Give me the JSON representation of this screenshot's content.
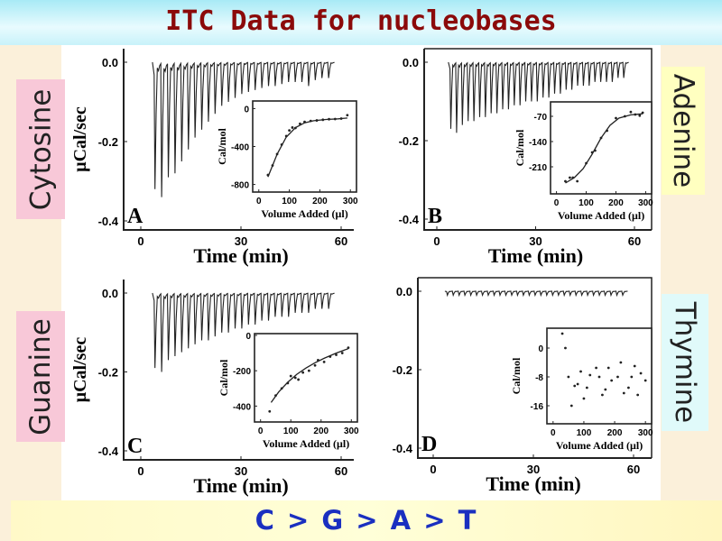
{
  "title": "ITC Data for nucleobases",
  "footer": "C > G > A > T",
  "labels": {
    "cytosine": "Cytosine",
    "guanine": "Guanine",
    "adenine": "Adenine",
    "thymine": "Thymine"
  },
  "colors": {
    "title": "#8b0a0a",
    "footer": "#1a2fc0",
    "cytosine_bg": "#f8c8d8",
    "guanine_bg": "#f8c8d8",
    "adenine_bg": "#ffffc0",
    "thymine_bg": "#e0fafa"
  },
  "chart_data": [
    {
      "panel": "A",
      "type": "line",
      "xlabel": "Time (min)",
      "ylabel": "μCal/sec",
      "xticks": [
        "0",
        "30",
        "60"
      ],
      "yticks": [
        "0.0",
        "-0.2",
        "-0.4"
      ],
      "xlim": [
        0,
        60
      ],
      "ylim": [
        -0.4,
        0.0
      ],
      "injection_start": 4,
      "injection_interval": 2,
      "peak_heights": [
        -0.32,
        -0.34,
        -0.29,
        -0.28,
        -0.25,
        -0.22,
        -0.19,
        -0.17,
        -0.15,
        -0.13,
        -0.11,
        -0.1,
        -0.09,
        -0.08,
        -0.075,
        -0.07,
        -0.065,
        -0.06,
        -0.06,
        -0.055,
        -0.05,
        -0.05,
        -0.05,
        -0.06,
        -0.045,
        -0.04,
        -0.04
      ],
      "inset": {
        "type": "scatter",
        "xlabel": "Volume Added (μl)",
        "ylabel": "Cal/mol",
        "xticks": [
          "0",
          "100",
          "200",
          "300"
        ],
        "yticks": [
          "0",
          "-400",
          "-800"
        ],
        "xlim": [
          -20,
          320
        ],
        "ylim": [
          -880,
          80
        ],
        "points": [
          [
            30,
            -700
          ],
          [
            45,
            -600
          ],
          [
            60,
            -480
          ],
          [
            75,
            -380
          ],
          [
            90,
            -290
          ],
          [
            100,
            -230
          ],
          [
            110,
            -200
          ],
          [
            120,
            -205
          ],
          [
            135,
            -160
          ],
          [
            150,
            -140
          ],
          [
            170,
            -130
          ],
          [
            190,
            -125
          ],
          [
            210,
            -118
          ],
          [
            230,
            -112
          ],
          [
            250,
            -110
          ],
          [
            270,
            -105
          ],
          [
            290,
            -70
          ]
        ],
        "fit": [
          [
            30,
            -720
          ],
          [
            60,
            -480
          ],
          [
            90,
            -300
          ],
          [
            120,
            -200
          ],
          [
            150,
            -150
          ],
          [
            180,
            -128
          ],
          [
            220,
            -115
          ],
          [
            260,
            -108
          ],
          [
            290,
            -100
          ]
        ]
      }
    },
    {
      "panel": "B",
      "type": "line",
      "xlabel": "Time (min)",
      "ylabel": "",
      "xticks": [
        "0",
        "30",
        "60"
      ],
      "yticks": [
        "0.0",
        "-0.2",
        "-0.4"
      ],
      "xlim": [
        0,
        60
      ],
      "ylim": [
        -0.4,
        0.0
      ],
      "injection_start": 4,
      "injection_interval": 1.75,
      "peak_heights": [
        -0.17,
        -0.18,
        -0.16,
        -0.15,
        -0.15,
        -0.14,
        -0.14,
        -0.13,
        -0.13,
        -0.12,
        -0.12,
        -0.11,
        -0.11,
        -0.1,
        -0.1,
        -0.1,
        -0.09,
        -0.09,
        -0.08,
        -0.08,
        -0.07,
        -0.07,
        -0.06,
        -0.06,
        -0.06,
        -0.05,
        -0.05,
        -0.05,
        -0.05,
        -0.04,
        -0.04
      ],
      "inset": {
        "type": "scatter",
        "xlabel": "Volume Added (μl)",
        "ylabel": "Cal/mol",
        "xticks": [
          "0",
          "100",
          "200",
          "300"
        ],
        "yticks": [
          "-70",
          "-140",
          "-210"
        ],
        "xlim": [
          -20,
          320
        ],
        "ylim": [
          -285,
          -30
        ],
        "points": [
          [
            30,
            -250
          ],
          [
            45,
            -240
          ],
          [
            55,
            -240
          ],
          [
            70,
            -250
          ],
          [
            100,
            -200
          ],
          [
            120,
            -170
          ],
          [
            130,
            -165
          ],
          [
            150,
            -130
          ],
          [
            170,
            -110
          ],
          [
            200,
            -75
          ],
          [
            230,
            -70
          ],
          [
            250,
            -58
          ],
          [
            265,
            -65
          ],
          [
            280,
            -68
          ],
          [
            290,
            -60
          ]
        ],
        "fit": [
          [
            30,
            -255
          ],
          [
            60,
            -240
          ],
          [
            90,
            -215
          ],
          [
            120,
            -175
          ],
          [
            150,
            -130
          ],
          [
            180,
            -95
          ],
          [
            210,
            -75
          ],
          [
            250,
            -66
          ],
          [
            290,
            -63
          ]
        ]
      }
    },
    {
      "panel": "C",
      "type": "line",
      "xlabel": "Time (min)",
      "ylabel": "μCal/sec",
      "xticks": [
        "0",
        "30",
        "60"
      ],
      "yticks": [
        "0.0",
        "-0.2",
        "-0.4"
      ],
      "xlim": [
        0,
        60
      ],
      "ylim": [
        -0.4,
        0.0
      ],
      "injection_start": 4,
      "injection_interval": 2,
      "peak_heights": [
        -0.19,
        -0.2,
        -0.17,
        -0.16,
        -0.15,
        -0.14,
        -0.13,
        -0.12,
        -0.12,
        -0.11,
        -0.1,
        -0.1,
        -0.09,
        -0.09,
        -0.08,
        -0.08,
        -0.07,
        -0.07,
        -0.06,
        -0.06,
        -0.06,
        -0.05,
        -0.05,
        -0.05,
        -0.04,
        -0.04,
        -0.04
      ],
      "inset": {
        "type": "scatter",
        "xlabel": "Volume Added (μl)",
        "ylabel": "Cal/mol",
        "xticks": [
          "0",
          "100",
          "200",
          "300"
        ],
        "yticks": [
          "0",
          "-200",
          "-400"
        ],
        "xlim": [
          -20,
          320
        ],
        "ylim": [
          -490,
          10
        ],
        "points": [
          [
            30,
            -430
          ],
          [
            50,
            -340
          ],
          [
            70,
            -300
          ],
          [
            90,
            -270
          ],
          [
            100,
            -230
          ],
          [
            115,
            -240
          ],
          [
            125,
            -250
          ],
          [
            140,
            -210
          ],
          [
            160,
            -200
          ],
          [
            180,
            -170
          ],
          [
            190,
            -140
          ],
          [
            210,
            -150
          ],
          [
            230,
            -120
          ],
          [
            250,
            -110
          ],
          [
            270,
            -100
          ],
          [
            290,
            -70
          ]
        ],
        "fit": [
          [
            35,
            -380
          ],
          [
            60,
            -320
          ],
          [
            90,
            -265
          ],
          [
            120,
            -220
          ],
          [
            150,
            -185
          ],
          [
            180,
            -155
          ],
          [
            210,
            -130
          ],
          [
            250,
            -100
          ],
          [
            290,
            -75
          ]
        ]
      }
    },
    {
      "panel": "D",
      "type": "line",
      "xlabel": "Time (min)",
      "ylabel": "",
      "xticks": [
        "0",
        "30",
        "60"
      ],
      "yticks": [
        "0.0",
        "-0.2",
        "-0.4"
      ],
      "xlim": [
        0,
        60
      ],
      "ylim": [
        -0.4,
        0.0
      ],
      "injection_start": 4,
      "injection_interval": 1.75,
      "peak_heights": [
        -0.01,
        -0.01,
        -0.01,
        -0.01,
        -0.01,
        -0.01,
        -0.01,
        -0.01,
        -0.01,
        -0.01,
        -0.01,
        -0.01,
        -0.01,
        -0.01,
        -0.01,
        -0.01,
        -0.01,
        -0.01,
        -0.01,
        -0.01,
        -0.01,
        -0.01,
        -0.01,
        -0.01,
        -0.01,
        -0.01,
        -0.01,
        -0.01,
        -0.01,
        -0.01,
        -0.01
      ],
      "inset": {
        "type": "scatter",
        "xlabel": "Volume Added (μl)",
        "ylabel": "Cal/mol",
        "xticks": [
          "0",
          "100",
          "200",
          "300"
        ],
        "yticks": [
          "0",
          "-8",
          "-16"
        ],
        "xlim": [
          -20,
          320
        ],
        "ylim": [
          -21,
          5.5
        ],
        "points": [
          [
            30,
            4
          ],
          [
            40,
            0
          ],
          [
            50,
            -8
          ],
          [
            60,
            -16
          ],
          [
            70,
            -10.5
          ],
          [
            80,
            -10
          ],
          [
            90,
            -6.5
          ],
          [
            100,
            -14
          ],
          [
            110,
            -11
          ],
          [
            120,
            -7.5
          ],
          [
            140,
            -5.5
          ],
          [
            150,
            -8
          ],
          [
            160,
            -13
          ],
          [
            170,
            -11.5
          ],
          [
            180,
            -5.5
          ],
          [
            190,
            -9
          ],
          [
            210,
            -8
          ],
          [
            220,
            -4
          ],
          [
            230,
            -12.5
          ],
          [
            245,
            -11
          ],
          [
            255,
            -8
          ],
          [
            265,
            -5
          ],
          [
            275,
            -13
          ],
          [
            285,
            -7
          ],
          [
            300,
            -9
          ]
        ],
        "fit": []
      }
    }
  ]
}
